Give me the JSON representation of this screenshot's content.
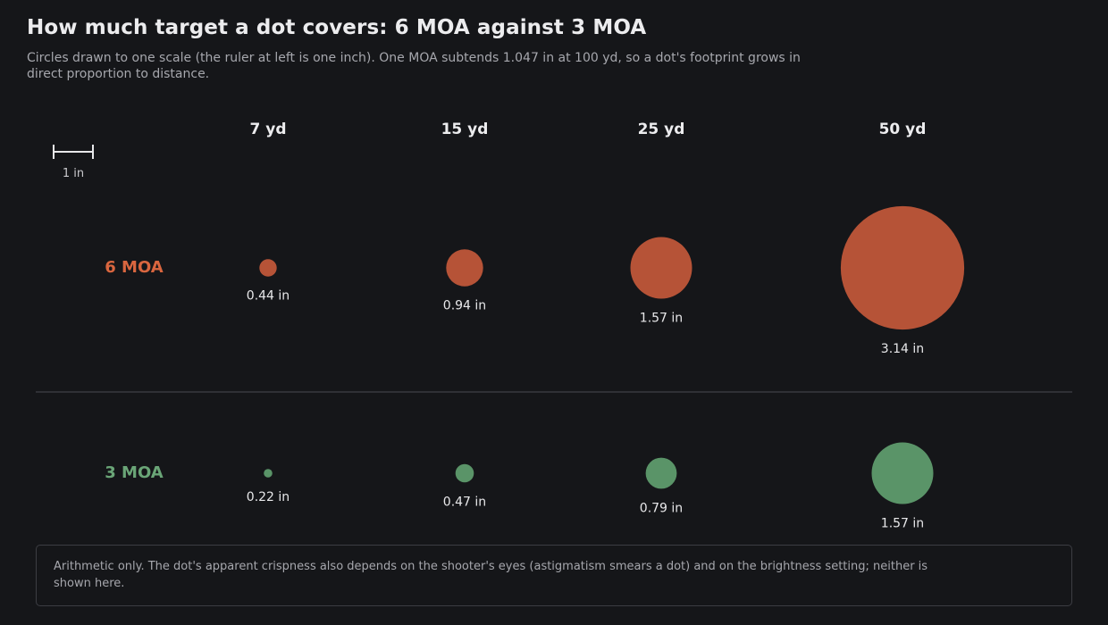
{
  "title": "How much target a dot covers: 6 MOA against 3 MOA",
  "subtitle": "Circles drawn to one scale (the ruler at left is one inch). One MOA subtends 1.047 in at 100 yd, so a dot's footprint grows in direct proportion to distance.",
  "ruler": {
    "label": "1 in",
    "inches": 1
  },
  "distances": [
    "7 yd",
    "15 yd",
    "25 yd",
    "50 yd"
  ],
  "rows": [
    {
      "label": "6 MOA",
      "color": "#b65337",
      "label_color": "#d9663f",
      "dots": [
        {
          "size": 0.44,
          "text": "0.44 in"
        },
        {
          "size": 0.94,
          "text": "0.94 in"
        },
        {
          "size": 1.57,
          "text": "1.57 in"
        },
        {
          "size": 3.14,
          "text": "3.14 in"
        }
      ]
    },
    {
      "label": "3 MOA",
      "color": "#5a9468",
      "label_color": "#6aa577",
      "dots": [
        {
          "size": 0.22,
          "text": "0.22 in"
        },
        {
          "size": 0.47,
          "text": "0.47 in"
        },
        {
          "size": 0.79,
          "text": "0.79 in"
        },
        {
          "size": 1.57,
          "text": "1.57 in"
        }
      ]
    }
  ],
  "note": "Arithmetic only. The dot's apparent crispness also depends on the shooter's eyes (astigmatism smears a dot) and on the brightness setting; neither is shown here."
}
